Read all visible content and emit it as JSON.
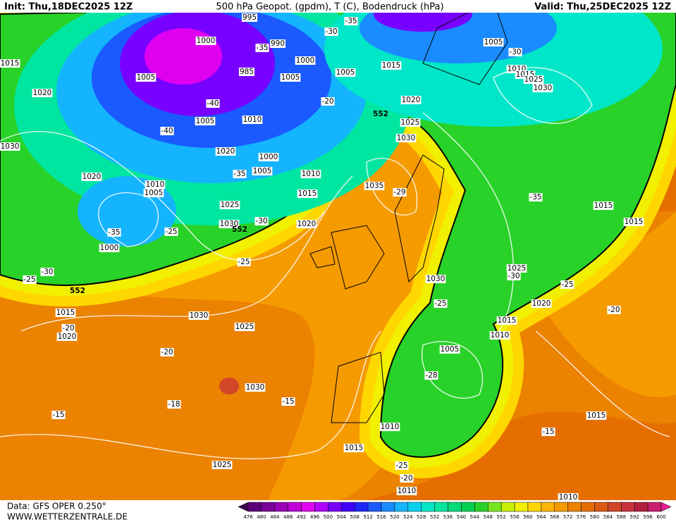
{
  "header": {
    "init": "Init: Thu,18DEC2025 12Z",
    "title": "500 hPa Geopot. (gpdm), T (C), Bodendruck (hPa)",
    "valid": "Valid: Thu,25DEC2025 12Z"
  },
  "footer": {
    "data": "Data: GFS OPER 0.250°",
    "site": "WWW.WETTERZENTRALE.DE"
  },
  "isobar_labels": [
    "995",
    "1000",
    "990",
    "985",
    "1005",
    "1000",
    "1005",
    "1005",
    "1015",
    "1005",
    "1010",
    "1015",
    "1025",
    "1030",
    "1020",
    "1020",
    "1005",
    "1010",
    "1025",
    "1030",
    "1020",
    "1000",
    "1005",
    "1010",
    "1020",
    "1010",
    "1005",
    "1015",
    "1035",
    "1015",
    "1025",
    "1030",
    "1020",
    "1015",
    "1000",
    "1025",
    "1030",
    "1020",
    "1015",
    "1030",
    "1025",
    "1015",
    "1010",
    "1020",
    "1005",
    "1030",
    "1010",
    "1015",
    "1015",
    "1025",
    "1010",
    "1010",
    "1015",
    "1030"
  ],
  "temperature_labels": [
    "-30",
    "-35",
    "-35",
    "-30",
    "-40",
    "-20",
    "-40",
    "-35",
    "-30",
    "-25",
    "-35",
    "-30",
    "-25",
    "-25",
    "-29",
    "-35",
    "-30",
    "-25",
    "-20",
    "-25",
    "-20",
    "-20",
    "-28",
    "-18",
    "-15",
    "-15",
    "-15",
    "-25",
    "-20"
  ],
  "geopotential_labels": [
    "552",
    "552",
    "552"
  ],
  "colorbar": {
    "labels": [
      476,
      480,
      484,
      488,
      492,
      496,
      500,
      504,
      508,
      512,
      516,
      520,
      524,
      528,
      532,
      536,
      540,
      544,
      548,
      552,
      556,
      560,
      564,
      568,
      572,
      576,
      580,
      584,
      588,
      592,
      596,
      600
    ],
    "colors": [
      "#3d0050",
      "#5a0078",
      "#7a0099",
      "#9a00b8",
      "#c000d8",
      "#e000f0",
      "#b000ff",
      "#7800ff",
      "#4000ff",
      "#1e28ff",
      "#1a5aff",
      "#1a8cff",
      "#14b4ff",
      "#00d2f0",
      "#00e6c8",
      "#00e6a0",
      "#00dc78",
      "#00d250",
      "#28d228",
      "#78e61e",
      "#c8f000",
      "#f0f000",
      "#ffd700",
      "#ffb400",
      "#f59b00",
      "#eb8200",
      "#e66e00",
      "#dc5a14",
      "#d24628",
      "#c8323c",
      "#b41e3c",
      "#c81e6e",
      "#e61e96"
    ]
  }
}
